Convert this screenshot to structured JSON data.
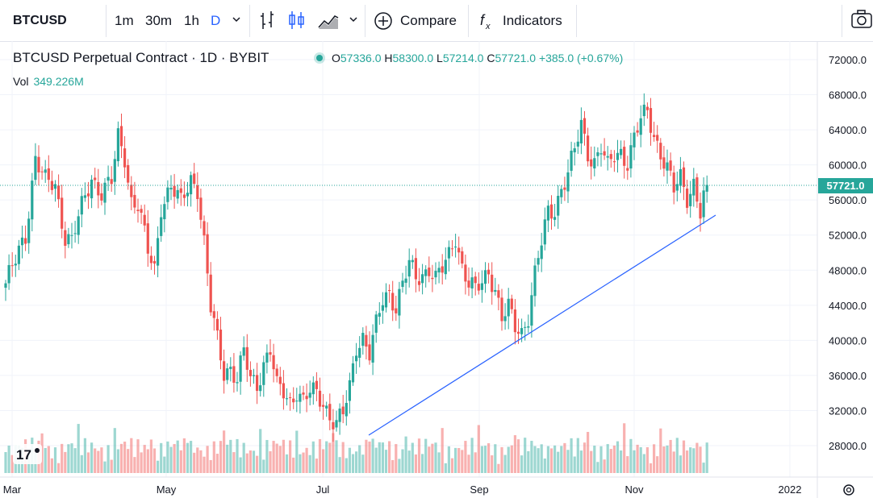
{
  "toolbar": {
    "symbol": "BTCUSD",
    "intervals": [
      "1m",
      "30m",
      "1h",
      "D"
    ],
    "compare_label": "Compare",
    "indicators_label": "Indicators"
  },
  "legend": {
    "title": "BTCUSD Perpetual Contract · 1D · BYBIT",
    "open_label": "O",
    "open": "57336.0",
    "high_label": "H",
    "high": "58300.0",
    "low_label": "L",
    "low": "57214.0",
    "close_label": "C",
    "close": "57721.0",
    "change": "+385.0 (+0.67%)",
    "vol_label": "Vol",
    "vol": "349.226M"
  },
  "colors": {
    "up": "#26a69a",
    "down": "#ef5350",
    "trendline": "#2962ff"
  },
  "chart_data": {
    "type": "candlestick",
    "price_axis": [
      "72000.0",
      "68000.0",
      "64000.0",
      "60000.0",
      "56000.0",
      "52000.0",
      "48000.0",
      "44000.0",
      "40000.0",
      "36000.0",
      "32000.0",
      "28000.0"
    ],
    "time_axis": [
      "Mar",
      "May",
      "Jul",
      "Sep",
      "Nov",
      "2022"
    ],
    "last_price": "57721.0",
    "ylim": [
      25000,
      73000
    ],
    "close_path": [
      [
        0,
        46500
      ],
      [
        3,
        49000
      ],
      [
        6,
        52000
      ],
      [
        9,
        61000
      ],
      [
        12,
        58000
      ],
      [
        15,
        57500
      ],
      [
        18,
        52000
      ],
      [
        20,
        51500
      ],
      [
        23,
        55000
      ],
      [
        26,
        58500
      ],
      [
        29,
        57000
      ],
      [
        32,
        58000
      ],
      [
        34,
        63000
      ],
      [
        36,
        61000
      ],
      [
        38,
        56000
      ],
      [
        40,
        55500
      ],
      [
        43,
        50000
      ],
      [
        45,
        48000
      ],
      [
        47,
        55500
      ],
      [
        50,
        57500
      ],
      [
        53,
        55500
      ],
      [
        56,
        58500
      ],
      [
        58,
        57500
      ],
      [
        60,
        51000
      ],
      [
        62,
        43500
      ],
      [
        64,
        40000
      ],
      [
        66,
        36500
      ],
      [
        68,
        37000
      ],
      [
        70,
        35500
      ],
      [
        72,
        38500
      ],
      [
        74,
        35500
      ],
      [
        76,
        35000
      ],
      [
        78,
        37500
      ],
      [
        80,
        39000
      ],
      [
        82,
        34500
      ],
      [
        84,
        34000
      ],
      [
        86,
        33000
      ],
      [
        88,
        34500
      ],
      [
        90,
        33000
      ],
      [
        92,
        34000
      ],
      [
        94,
        33800
      ],
      [
        96,
        33000
      ],
      [
        98,
        31500
      ],
      [
        100,
        30500
      ],
      [
        102,
        31500
      ],
      [
        104,
        34500
      ],
      [
        106,
        39500
      ],
      [
        108,
        40500
      ],
      [
        110,
        38500
      ],
      [
        112,
        41500
      ],
      [
        114,
        44500
      ],
      [
        116,
        45500
      ],
      [
        118,
        44000
      ],
      [
        120,
        46500
      ],
      [
        122,
        48500
      ],
      [
        124,
        47000
      ],
      [
        126,
        47500
      ],
      [
        128,
        48500
      ],
      [
        130,
        47000
      ],
      [
        132,
        48000
      ],
      [
        134,
        49500
      ],
      [
        136,
        52000
      ],
      [
        138,
        48500
      ],
      [
        140,
        46500
      ],
      [
        142,
        45500
      ],
      [
        144,
        46500
      ],
      [
        146,
        48000
      ],
      [
        148,
        46000
      ],
      [
        150,
        42500
      ],
      [
        152,
        43500
      ],
      [
        154,
        41500
      ],
      [
        156,
        41000
      ],
      [
        158,
        43000
      ],
      [
        160,
        47500
      ],
      [
        162,
        51000
      ],
      [
        164,
        54500
      ],
      [
        166,
        55000
      ],
      [
        168,
        57500
      ],
      [
        170,
        59000
      ],
      [
        172,
        61500
      ],
      [
        174,
        64500
      ],
      [
        176,
        61500
      ],
      [
        178,
        60500
      ],
      [
        180,
        62000
      ],
      [
        182,
        59500
      ],
      [
        184,
        61000
      ],
      [
        186,
        61500
      ],
      [
        188,
        60500
      ],
      [
        190,
        63000
      ],
      [
        192,
        65000
      ],
      [
        194,
        66000
      ],
      [
        196,
        63500
      ],
      [
        198,
        61500
      ],
      [
        200,
        59500
      ],
      [
        202,
        57000
      ],
      [
        204,
        58500
      ],
      [
        206,
        56500
      ],
      [
        208,
        58000
      ],
      [
        210,
        54500
      ],
      [
        212,
        57721
      ]
    ]
  }
}
